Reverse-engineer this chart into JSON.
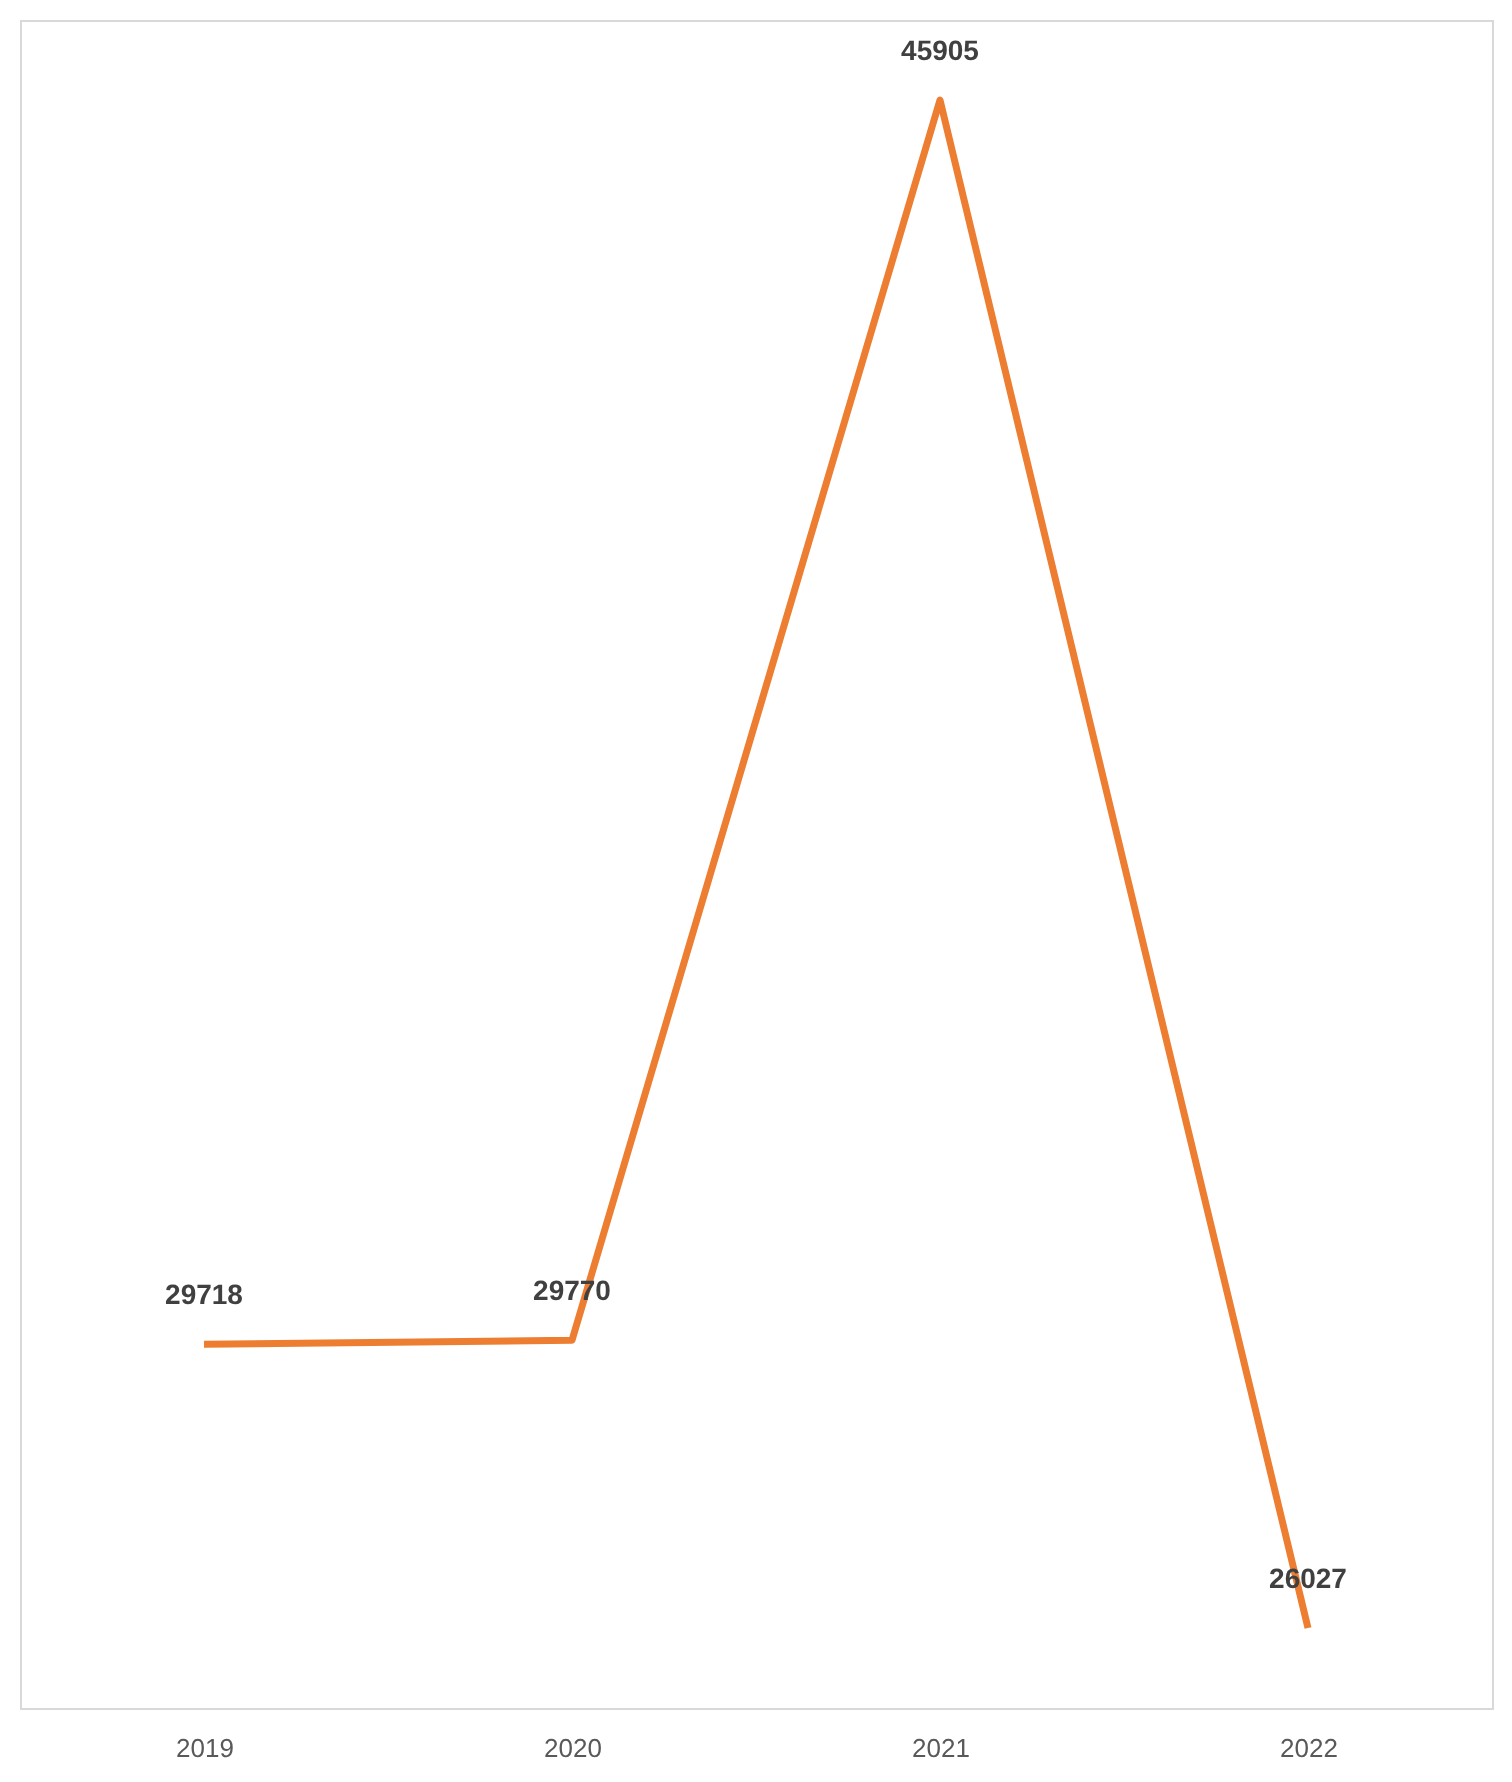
{
  "chart_data": {
    "type": "line",
    "categories": [
      "2019",
      "2020",
      "2021",
      "2022"
    ],
    "series": [
      {
        "color": "#ed7d31",
        "values": [
          29718,
          29770,
          45905,
          26027
        ]
      }
    ],
    "data_labels": true
  }
}
